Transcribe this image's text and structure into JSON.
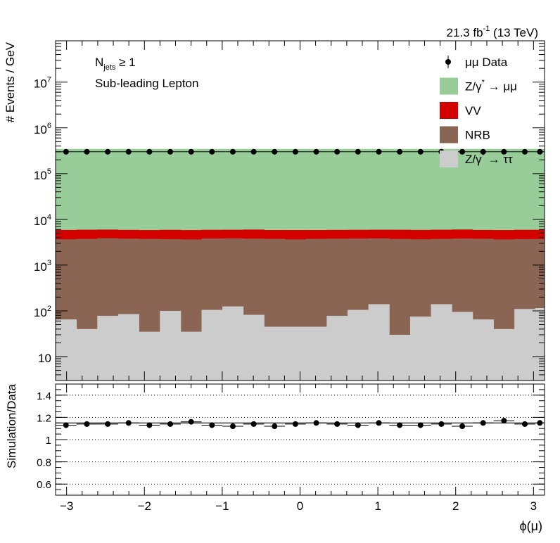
{
  "header": {
    "lumi_value": "21.3 fb",
    "lumi_exp": "-1",
    "lumi_tail": " (13 TeV)"
  },
  "annotations": {
    "njets_N": "N",
    "njets_sub": "jets",
    "njets_rest": " ≥ 1",
    "lepton": "Sub-leading Lepton"
  },
  "colors": {
    "ztautau": "#cccccc",
    "nrb": "#8b6553",
    "vv": "#d40000",
    "zmumu": "#98cc98",
    "data": "#000000"
  },
  "chart_data": [
    {
      "type": "bar",
      "stacked": true,
      "log_y": true,
      "xlim": [
        -3.1416,
        3.1416
      ],
      "ylim": [
        3,
        80000000.0
      ],
      "ylabel": "# Events / GeV",
      "x_ticks": [
        "−3",
        "−2",
        "−1",
        "0",
        "1",
        "2",
        "3"
      ],
      "y_ticks": [
        "10",
        "10^2",
        "10^3",
        "10^4",
        "10^5",
        "10^6",
        "10^7"
      ],
      "bin_edges": [
        -3.1416,
        -2.8736,
        -2.6056,
        -2.3376,
        -2.0696,
        -1.8016,
        -1.5336,
        -1.2656,
        -0.9976,
        -0.7296,
        -0.4616,
        -0.1936,
        0.0744,
        0.3424,
        0.6104,
        0.8784,
        1.1464,
        1.4144,
        1.6824,
        1.9504,
        2.2184,
        2.4864,
        2.7544,
        3.0224,
        3.1416
      ],
      "legend_position": "top-right",
      "series": [
        {
          "name": "Z/γ* → ττ",
          "key": "ztautau",
          "legend": {
            "pre": "Z/γ",
            "sup": "*",
            "post": " → ττ"
          },
          "values": [
            65,
            40,
            78,
            85,
            35,
            100,
            35,
            105,
            125,
            82,
            45,
            45,
            45,
            78,
            105,
            140,
            30,
            75,
            140,
            95,
            65,
            40,
            110,
            115
          ]
        },
        {
          "name": "NRB",
          "key": "nrb",
          "legend": {
            "pre": "NRB",
            "sup": "",
            "post": ""
          },
          "values": [
            3600,
            3700,
            3800,
            3700,
            3700,
            3600,
            3600,
            3700,
            3700,
            3700,
            3700,
            3600,
            3700,
            3700,
            3700,
            3700,
            3700,
            3600,
            3600,
            3700,
            3700,
            3600,
            3600,
            3600
          ]
        },
        {
          "name": "VV",
          "key": "vv",
          "legend": {
            "pre": "VV",
            "sup": "",
            "post": ""
          },
          "values": [
            2200,
            2200,
            2100,
            2100,
            2100,
            2200,
            2200,
            2100,
            2100,
            2200,
            2100,
            2200,
            2100,
            2100,
            2100,
            2100,
            2200,
            2200,
            2200,
            2200,
            2100,
            2200,
            2200,
            2200
          ]
        },
        {
          "name": "Z/γ* → μμ",
          "key": "zmumu",
          "legend": {
            "pre": "Z/γ",
            "sup": "*",
            "post": " → μμ"
          },
          "values": [
            340000,
            340000,
            340000,
            340000,
            340000,
            340000,
            340000,
            340000,
            340000,
            340000,
            340000,
            340000,
            340000,
            340000,
            340000,
            340000,
            340000,
            340000,
            340000,
            340000,
            340000,
            340000,
            340000,
            340000
          ]
        }
      ],
      "data": {
        "name": "μμ Data",
        "x": [
          -3.0076,
          -2.7396,
          -2.4716,
          -2.2036,
          -1.9356,
          -1.6676,
          -1.3996,
          -1.1316,
          -0.8636,
          -0.5956,
          -0.3276,
          -0.0596,
          0.2084,
          0.4764,
          0.7444,
          1.0124,
          1.2804,
          1.5484,
          1.8164,
          2.0844,
          2.3524,
          2.6204,
          2.8884,
          3.082
        ],
        "values": [
          300000,
          300000,
          300000,
          300000,
          300000,
          300000,
          300000,
          300000,
          300000,
          300000,
          300000,
          300000,
          300000,
          300000,
          300000,
          300000,
          300000,
          300000,
          300000,
          300000,
          300000,
          300000,
          300000,
          300000
        ]
      }
    },
    {
      "type": "scatter",
      "xlim": [
        -3.1416,
        3.1416
      ],
      "ylim": [
        0.5,
        1.5
      ],
      "xlabel": "ϕ(μ)",
      "ylabel": "Simulation/Data",
      "x_ticks": [
        "−3",
        "−2",
        "−1",
        "0",
        "1",
        "2",
        "3"
      ],
      "y_ticks": [
        "0.6",
        "0.8",
        "1",
        "1.2",
        "1.4"
      ],
      "grid": "horizontal dotted",
      "reference_line": 1.15,
      "x": [
        -3.0076,
        -2.7396,
        -2.4716,
        -2.2036,
        -1.9356,
        -1.6676,
        -1.3996,
        -1.1316,
        -0.8636,
        -0.5956,
        -0.3276,
        -0.0596,
        0.2084,
        0.4764,
        0.7444,
        1.0124,
        1.2804,
        1.5484,
        1.8164,
        2.0844,
        2.3524,
        2.6204,
        2.8884,
        3.082
      ],
      "values": [
        1.13,
        1.14,
        1.14,
        1.15,
        1.13,
        1.14,
        1.16,
        1.13,
        1.12,
        1.14,
        1.12,
        1.14,
        1.15,
        1.14,
        1.13,
        1.15,
        1.13,
        1.13,
        1.14,
        1.12,
        1.15,
        1.17,
        1.14,
        1.15
      ]
    }
  ]
}
